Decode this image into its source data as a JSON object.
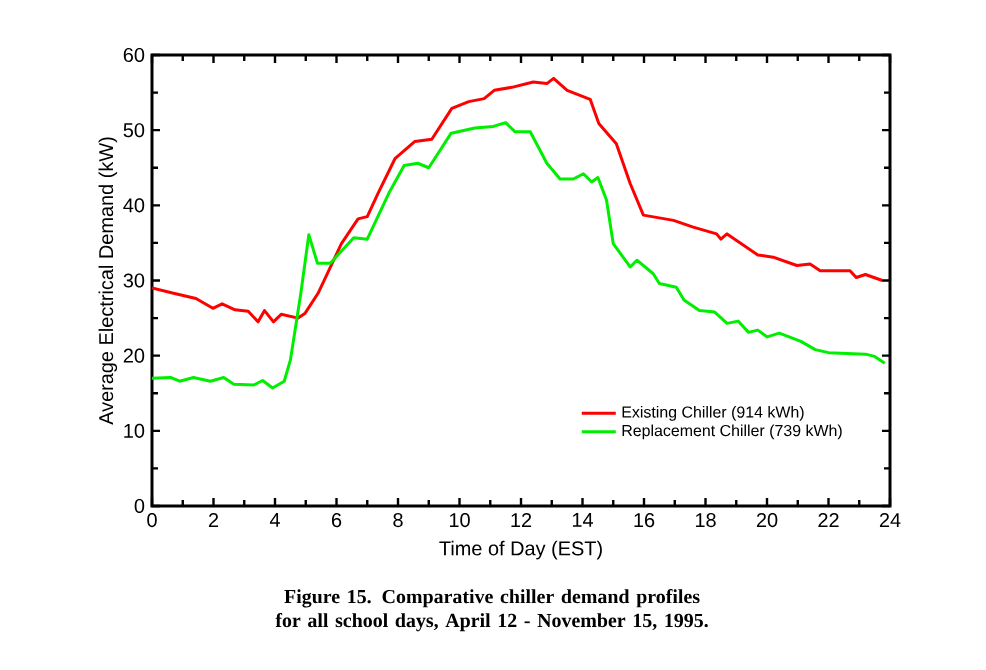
{
  "chart_data": {
    "type": "line",
    "xlabel": "Time of Day (EST)",
    "ylabel": "Average Electrical Demand (kW)",
    "xlim": [
      0,
      24
    ],
    "xticks": [
      0,
      2,
      4,
      6,
      8,
      10,
      12,
      14,
      16,
      18,
      20,
      22,
      24
    ],
    "ylim": [
      0,
      60
    ],
    "yticks": [
      0,
      10,
      20,
      30,
      40,
      50,
      60
    ],
    "legend": "bottom right",
    "grid": false,
    "marker": "none",
    "line_style": "solid",
    "annotations": [
      "Figure 15.  Comparative chiller demand profiles for all school days, April 12 - November 15, 1995."
    ],
    "series": [
      {
        "name": "Existing Chiller (914 kWh)",
        "color": "#ff0000",
        "x": [
          0,
          0.7,
          1.43,
          1.98,
          2.28,
          2.7,
          3.13,
          3.45,
          3.66,
          3.95,
          4.2,
          4.75,
          4.97,
          5.4,
          6.16,
          6.7,
          7.0,
          7.35,
          7.9,
          8.55,
          9.1,
          9.75,
          10.3,
          10.8,
          11.13,
          11.7,
          12.4,
          12.84,
          13.06,
          13.5,
          14.25,
          14.53,
          15.1,
          15.55,
          15.98,
          16.96,
          17.6,
          18.36,
          18.5,
          18.7,
          19.7,
          20.2,
          20.97,
          21.4,
          21.73,
          22.7,
          22.9,
          23.2,
          23.75
        ],
        "values": [
          29.0,
          28.3,
          27.6,
          26.3,
          26.9,
          26.1,
          25.9,
          24.5,
          26.0,
          24.5,
          25.5,
          25.0,
          25.6,
          28.3,
          34.9,
          38.2,
          38.5,
          41.6,
          46.2,
          48.5,
          48.8,
          52.9,
          53.8,
          54.2,
          55.3,
          55.7,
          56.4,
          56.2,
          56.9,
          55.3,
          54.1,
          50.9,
          48.2,
          42.9,
          38.7,
          38.0,
          37.1,
          36.2,
          35.5,
          36.2,
          33.4,
          33.1,
          32.0,
          32.2,
          31.3,
          31.3,
          30.4,
          30.8,
          30.0
        ]
      },
      {
        "name": "Replacement Chiller (739 kWh)",
        "color": "#00ee00",
        "x": [
          0,
          0.6,
          0.9,
          1.35,
          1.9,
          2.33,
          2.66,
          3.31,
          3.6,
          3.92,
          4.3,
          4.5,
          4.84,
          5.1,
          5.38,
          5.8,
          6.56,
          7.0,
          7.7,
          8.2,
          8.64,
          9.0,
          9.73,
          10.5,
          11.1,
          11.5,
          11.8,
          12.3,
          12.84,
          13.27,
          13.7,
          14.03,
          14.3,
          14.5,
          14.78,
          15.0,
          15.55,
          15.77,
          16.3,
          16.5,
          17.05,
          17.3,
          17.8,
          18.3,
          18.7,
          19.06,
          19.4,
          19.7,
          20.0,
          20.4,
          21.1,
          21.57,
          22.0,
          23.2,
          23.5,
          23.83
        ],
        "values": [
          17.0,
          17.1,
          16.6,
          17.1,
          16.6,
          17.1,
          16.2,
          16.1,
          16.7,
          15.7,
          16.6,
          19.4,
          28.3,
          36.1,
          32.3,
          32.3,
          35.7,
          35.5,
          41.6,
          45.3,
          45.6,
          45.0,
          49.6,
          50.3,
          50.5,
          51.0,
          49.8,
          49.8,
          45.6,
          43.5,
          43.5,
          44.2,
          43.1,
          43.7,
          40.7,
          34.9,
          31.8,
          32.7,
          30.9,
          29.6,
          29.1,
          27.4,
          26.0,
          25.8,
          24.3,
          24.6,
          23.1,
          23.4,
          22.5,
          23.0,
          21.9,
          20.8,
          20.4,
          20.2,
          19.9,
          19.0
        ]
      }
    ]
  }
}
